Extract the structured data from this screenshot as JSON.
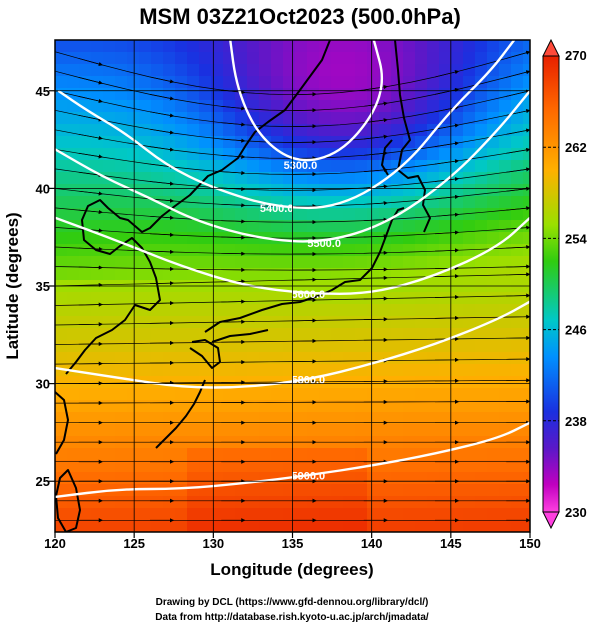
{
  "title": "MSM 03Z21Oct2023 (500.0hPa)",
  "xlabel": "Longitude (degrees)",
  "ylabel": "Latitude  (degrees)",
  "x_ticks": [
    "120",
    "125",
    "130",
    "135",
    "140",
    "145",
    "150"
  ],
  "y_ticks": [
    "25",
    "30",
    "35",
    "40",
    "45"
  ],
  "colorbar": {
    "min": 230,
    "max": 270,
    "ticks": [
      "230",
      "238",
      "246",
      "254",
      "262",
      "270"
    ]
  },
  "contour_labels": [
    "5300.0",
    "5400.0",
    "5500.0",
    "5600.0",
    "5800.0",
    "5900.0"
  ],
  "credit_line1": "Drawing by DCL (https://www.gfd-dennou.org/library/dcl/)",
  "credit_line2": "Data from http://database.rish.kyoto-u.ac.jp/arch/jmadata/",
  "chart_data": {
    "type": "heatmap",
    "title": "MSM 03Z21Oct2023 (500.0hPa)",
    "xlabel": "Longitude (degrees)",
    "ylabel": "Latitude  (degrees)",
    "xlim": [
      120,
      150
    ],
    "ylim": [
      22.4,
      47.6
    ],
    "colorbar_range": [
      230,
      270
    ],
    "colorbar_ticks": [
      230,
      238,
      246,
      254,
      262,
      270
    ],
    "contours": [
      {
        "label": "5300.0",
        "points": [
          [
            140,
            48
          ],
          [
            141,
            45
          ],
          [
            138.5,
            42
          ],
          [
            135.5,
            41.2
          ],
          [
            133,
            42.5
          ],
          [
            131.5,
            45
          ],
          [
            131,
            48
          ]
        ]
      },
      {
        "label": "5400.0",
        "points": [
          [
            120.2,
            45
          ],
          [
            122,
            44
          ],
          [
            124.5,
            42.8
          ],
          [
            127,
            41.2
          ],
          [
            130,
            40
          ],
          [
            134,
            39
          ],
          [
            138,
            39
          ],
          [
            142,
            41
          ],
          [
            145,
            44
          ],
          [
            147.5,
            46
          ],
          [
            149,
            47.6
          ]
        ]
      },
      {
        "label": "5500.0",
        "points": [
          [
            120,
            42
          ],
          [
            123,
            40.6
          ],
          [
            126,
            39.5
          ],
          [
            129,
            38.3
          ],
          [
            133,
            37.4
          ],
          [
            137,
            37.2
          ],
          [
            141,
            38.2
          ],
          [
            145,
            40.5
          ],
          [
            148,
            43
          ],
          [
            150,
            45
          ]
        ]
      },
      {
        "label": "5600.0",
        "points": [
          [
            120,
            38.5
          ],
          [
            124,
            37.3
          ],
          [
            128,
            36
          ],
          [
            132,
            35
          ],
          [
            136,
            34.6
          ],
          [
            140,
            34.6
          ],
          [
            144,
            35.5
          ],
          [
            148,
            37
          ],
          [
            150,
            38.5
          ]
        ]
      },
      {
        "label": "5800.0",
        "points": [
          [
            120,
            30.8
          ],
          [
            124,
            30.3
          ],
          [
            128,
            29.8
          ],
          [
            132,
            29.8
          ],
          [
            136,
            30.2
          ],
          [
            140,
            31
          ],
          [
            144,
            32
          ],
          [
            148,
            33.3
          ],
          [
            150,
            34.2
          ]
        ]
      },
      {
        "label": "5900.0",
        "points": [
          [
            120,
            24.2
          ],
          [
            124,
            24.6
          ],
          [
            128,
            24.6
          ],
          [
            132,
            24.9
          ],
          [
            136,
            25.3
          ],
          [
            140,
            25.8
          ],
          [
            144,
            26.4
          ],
          [
            148,
            27.2
          ],
          [
            150,
            28
          ]
        ]
      }
    ],
    "wind": "streamlines with arrows, predominantly westerly",
    "grid": true
  },
  "colors": {
    "contour": "#ffffff",
    "coast": "#000000",
    "stream": "#000000"
  }
}
